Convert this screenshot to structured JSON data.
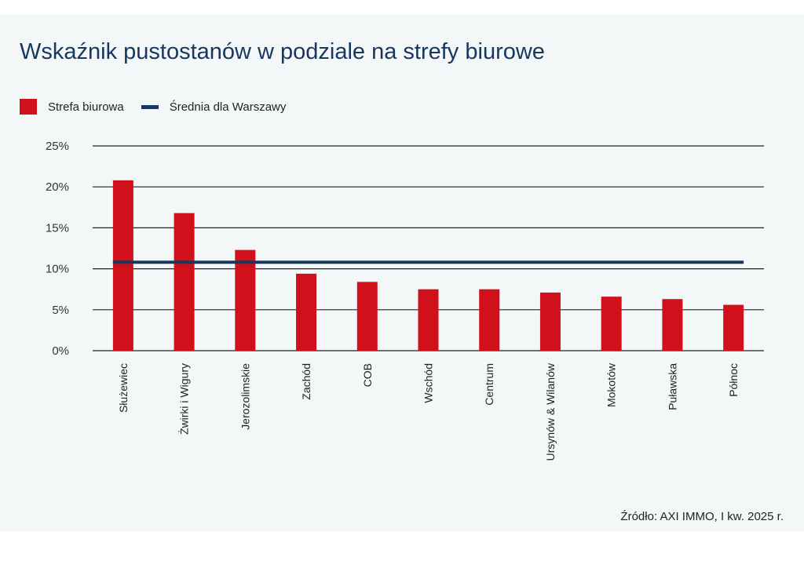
{
  "title": "Wskaźnik pustostanów w podziale na strefy biurowe",
  "legend": {
    "bar_label": "Strefa biurowa",
    "line_label": "Średnia dla Warszawy"
  },
  "source": "Źródło: AXI IMMO, I kw. 2025 r.",
  "colors": {
    "bar": "#d0111b",
    "average": "#17375e",
    "title": "#17375e",
    "grid": "#222222"
  },
  "chart_data": {
    "type": "bar",
    "title": "Wskaźnik pustostanów w podziale na strefy biurowe",
    "xlabel": "",
    "ylabel": "",
    "categories": [
      "Służewiec",
      "Żwirki i Wigury",
      "Jerozolimskie",
      "Zachód",
      "COB",
      "Wschód",
      "Centrum",
      "Ursynów & Wilanów",
      "Mokotów",
      "Puławska",
      "Północ"
    ],
    "series": [
      {
        "name": "Strefa biurowa",
        "type": "bar",
        "values": [
          20.8,
          16.8,
          12.3,
          9.4,
          8.4,
          7.5,
          7.5,
          7.1,
          6.6,
          6.3,
          5.6
        ]
      },
      {
        "name": "Średnia dla Warszawy",
        "type": "line",
        "value": 10.8
      }
    ],
    "ylim": [
      0,
      25
    ],
    "yticks": [
      0,
      5,
      10,
      15,
      20,
      25
    ],
    "ytick_labels": [
      "0%",
      "5%",
      "10%",
      "15%",
      "20%",
      "25%"
    ],
    "grid": true,
    "legend_position": "top-left"
  }
}
